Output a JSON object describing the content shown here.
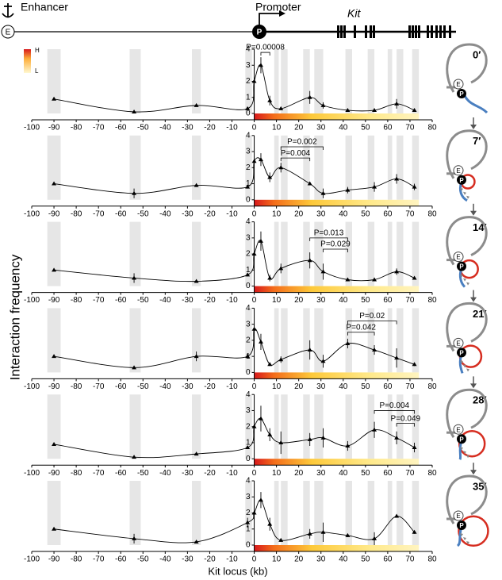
{
  "header": {
    "enhancer": "Enhancer",
    "promoter": "Promoter",
    "gene": "Kit",
    "enhancer_symbol": "E",
    "promoter_symbol": "P"
  },
  "y_label": "Interaction frequency",
  "x_label": "Kit locus (kb)",
  "heatmap_legend": {
    "high": "H",
    "low": "L"
  },
  "shaded_regions": [
    [
      -93,
      -87
    ],
    [
      -56,
      -51
    ],
    [
      -28,
      -24
    ],
    [
      -4,
      -1
    ],
    [
      9,
      11
    ],
    [
      12,
      15
    ],
    [
      22,
      25
    ],
    [
      27,
      31
    ],
    [
      41,
      44
    ],
    [
      51,
      54
    ],
    [
      60,
      62
    ],
    [
      64,
      67
    ],
    [
      71,
      74
    ]
  ],
  "chart_data": [
    {
      "type": "line",
      "label": "0′",
      "x": [
        -90,
        -54,
        -26,
        -3,
        0,
        3,
        7,
        12,
        25,
        31,
        42,
        54,
        64,
        72
      ],
      "series": [
        {
          "color": "#000000",
          "values": [
            0.9,
            0.1,
            0.5,
            0.3,
            2.0,
            3.0,
            0.8,
            0.3,
            1.0,
            0.5,
            0.2,
            0.2,
            0.6,
            0.2
          ],
          "errors": [
            0.05,
            0.05,
            0.05,
            0.05,
            0.3,
            0.5,
            0.3,
            0.1,
            0.4,
            0.2,
            0.05,
            0.1,
            0.3,
            0.1
          ]
        }
      ],
      "xlim": [
        -100,
        80
      ],
      "xticks": [
        -100,
        -90,
        -80,
        -70,
        -60,
        -50,
        -40,
        -30,
        -20,
        -10,
        0,
        10,
        20,
        30,
        40,
        50,
        60,
        70,
        80
      ],
      "ylim": [
        0,
        4
      ],
      "yticks": [
        0,
        1,
        2,
        3,
        4
      ],
      "annotations": [
        {
          "text": "P=0.00008",
          "x1": 3,
          "x2": 7,
          "y": 3.8
        }
      ]
    },
    {
      "type": "line",
      "label": "7′",
      "x": [
        -90,
        -54,
        -26,
        -3,
        0,
        3,
        7,
        12,
        25,
        31,
        42,
        54,
        64,
        72
      ],
      "series": [
        {
          "color": "#000000",
          "values": [
            1.0,
            0.4,
            0.9,
            0.8,
            2.4,
            2.5,
            1.4,
            2.0,
            1.0,
            0.4,
            0.6,
            0.8,
            1.3,
            0.8
          ],
          "errors": [
            0.05,
            0.3,
            0.1,
            0.1,
            0.3,
            0.4,
            0.3,
            0.3,
            0.1,
            0.3,
            0.2,
            0.3,
            0.3,
            0.2
          ]
        }
      ],
      "xlim": [
        -100,
        80
      ],
      "xticks": [
        -100,
        -90,
        -80,
        -70,
        -60,
        -50,
        -40,
        -30,
        -20,
        -10,
        0,
        10,
        20,
        30,
        40,
        50,
        60,
        70,
        80
      ],
      "ylim": [
        0,
        4
      ],
      "yticks": [
        0,
        1,
        2,
        3,
        4
      ],
      "annotations": [
        {
          "text": "P=0.002",
          "x1": 12,
          "x2": 31,
          "y": 3.3
        },
        {
          "text": "P=0.004",
          "x1": 12,
          "x2": 25,
          "y": 2.6
        }
      ]
    },
    {
      "type": "line",
      "label": "14′",
      "x": [
        -90,
        -54,
        -26,
        -3,
        0,
        3,
        7,
        12,
        25,
        31,
        42,
        54,
        64,
        72
      ],
      "series": [
        {
          "color": "#000000",
          "values": [
            1.0,
            0.5,
            0.3,
            0.7,
            2.0,
            2.8,
            0.5,
            1.1,
            1.6,
            0.9,
            0.4,
            0.4,
            0.9,
            0.5
          ],
          "errors": [
            0.05,
            0.3,
            0.05,
            0.1,
            0.4,
            0.6,
            0.2,
            0.3,
            0.5,
            0.5,
            0.1,
            0.1,
            0.2,
            0.1
          ]
        }
      ],
      "xlim": [
        -100,
        80
      ],
      "xticks": [
        -100,
        -90,
        -80,
        -70,
        -60,
        -50,
        -40,
        -30,
        -20,
        -10,
        0,
        10,
        20,
        30,
        40,
        50,
        60,
        70,
        80
      ],
      "ylim": [
        0,
        4
      ],
      "yticks": [
        0,
        1,
        2,
        3,
        4
      ],
      "annotations": [
        {
          "text": "P=0.013",
          "x1": 25,
          "x2": 42,
          "y": 3.0
        },
        {
          "text": "P=0.029",
          "x1": 31,
          "x2": 42,
          "y": 2.3
        }
      ]
    },
    {
      "type": "line",
      "label": "21′",
      "x": [
        -90,
        -54,
        -26,
        -3,
        0,
        3,
        7,
        12,
        25,
        31,
        42,
        54,
        64,
        72
      ],
      "series": [
        {
          "color": "#000000",
          "values": [
            1.0,
            0.3,
            1.0,
            1.0,
            2.7,
            1.9,
            0.5,
            0.8,
            1.4,
            0.7,
            1.8,
            1.4,
            0.9,
            0.5
          ],
          "errors": [
            0.05,
            0.1,
            0.3,
            0.1,
            0.3,
            0.5,
            0.1,
            0.2,
            0.6,
            0.4,
            0.3,
            0.3,
            0.6,
            0.1
          ]
        }
      ],
      "xlim": [
        -100,
        80
      ],
      "xticks": [
        -100,
        -90,
        -80,
        -70,
        -60,
        -50,
        -40,
        -30,
        -20,
        -10,
        0,
        10,
        20,
        30,
        40,
        50,
        60,
        70,
        80
      ],
      "ylim": [
        0,
        4
      ],
      "yticks": [
        0,
        1,
        2,
        3,
        4
      ],
      "annotations": [
        {
          "text": "P=0.02",
          "x1": 42,
          "x2": 64,
          "y": 3.2
        },
        {
          "text": "P=0.042",
          "x1": 42,
          "x2": 54,
          "y": 2.5
        }
      ]
    },
    {
      "type": "line",
      "label": "28′",
      "x": [
        -90,
        -54,
        -26,
        -3,
        0,
        3,
        7,
        12,
        25,
        31,
        42,
        54,
        64,
        72
      ],
      "series": [
        {
          "color": "#000000",
          "values": [
            0.9,
            0.1,
            0.3,
            0.7,
            2.0,
            2.5,
            1.5,
            1.0,
            1.2,
            1.3,
            0.8,
            1.8,
            1.3,
            0.7
          ],
          "errors": [
            0.05,
            0.05,
            0.05,
            0.1,
            0.4,
            0.8,
            0.4,
            0.7,
            0.4,
            0.6,
            0.3,
            0.5,
            0.4,
            0.3
          ]
        }
      ],
      "xlim": [
        -100,
        80
      ],
      "xticks": [
        -100,
        -90,
        -80,
        -70,
        -60,
        -50,
        -40,
        -30,
        -20,
        -10,
        0,
        10,
        20,
        30,
        40,
        50,
        60,
        70,
        80
      ],
      "ylim": [
        0,
        4
      ],
      "yticks": [
        0,
        1,
        2,
        3,
        4
      ],
      "annotations": [
        {
          "text": "P=0.004",
          "x1": 54,
          "x2": 72,
          "y": 3.0
        },
        {
          "text": "P=0.049",
          "x1": 64,
          "x2": 72,
          "y": 2.2
        }
      ]
    },
    {
      "type": "line",
      "label": "35′",
      "x": [
        -90,
        -54,
        -26,
        -3,
        0,
        3,
        7,
        12,
        25,
        31,
        42,
        54,
        64,
        72
      ],
      "series": [
        {
          "color": "#000000",
          "values": [
            1.0,
            0.4,
            0.2,
            1.4,
            2.0,
            2.8,
            1.3,
            0.3,
            0.7,
            0.8,
            0.6,
            0.4,
            1.8,
            0.8
          ],
          "errors": [
            0.05,
            0.3,
            0.1,
            0.3,
            0.4,
            0.5,
            0.4,
            0.1,
            0.3,
            0.6,
            0.1,
            0.4,
            0.1,
            0.1
          ]
        }
      ],
      "xlim": [
        -100,
        80
      ],
      "xticks": [
        -100,
        -90,
        -80,
        -70,
        -60,
        -50,
        -40,
        -30,
        -20,
        -10,
        0,
        10,
        20,
        30,
        40,
        50,
        60,
        70,
        80
      ],
      "ylim": [
        0,
        4
      ],
      "yticks": [
        0,
        1,
        2,
        3,
        4
      ],
      "annotations": []
    }
  ]
}
